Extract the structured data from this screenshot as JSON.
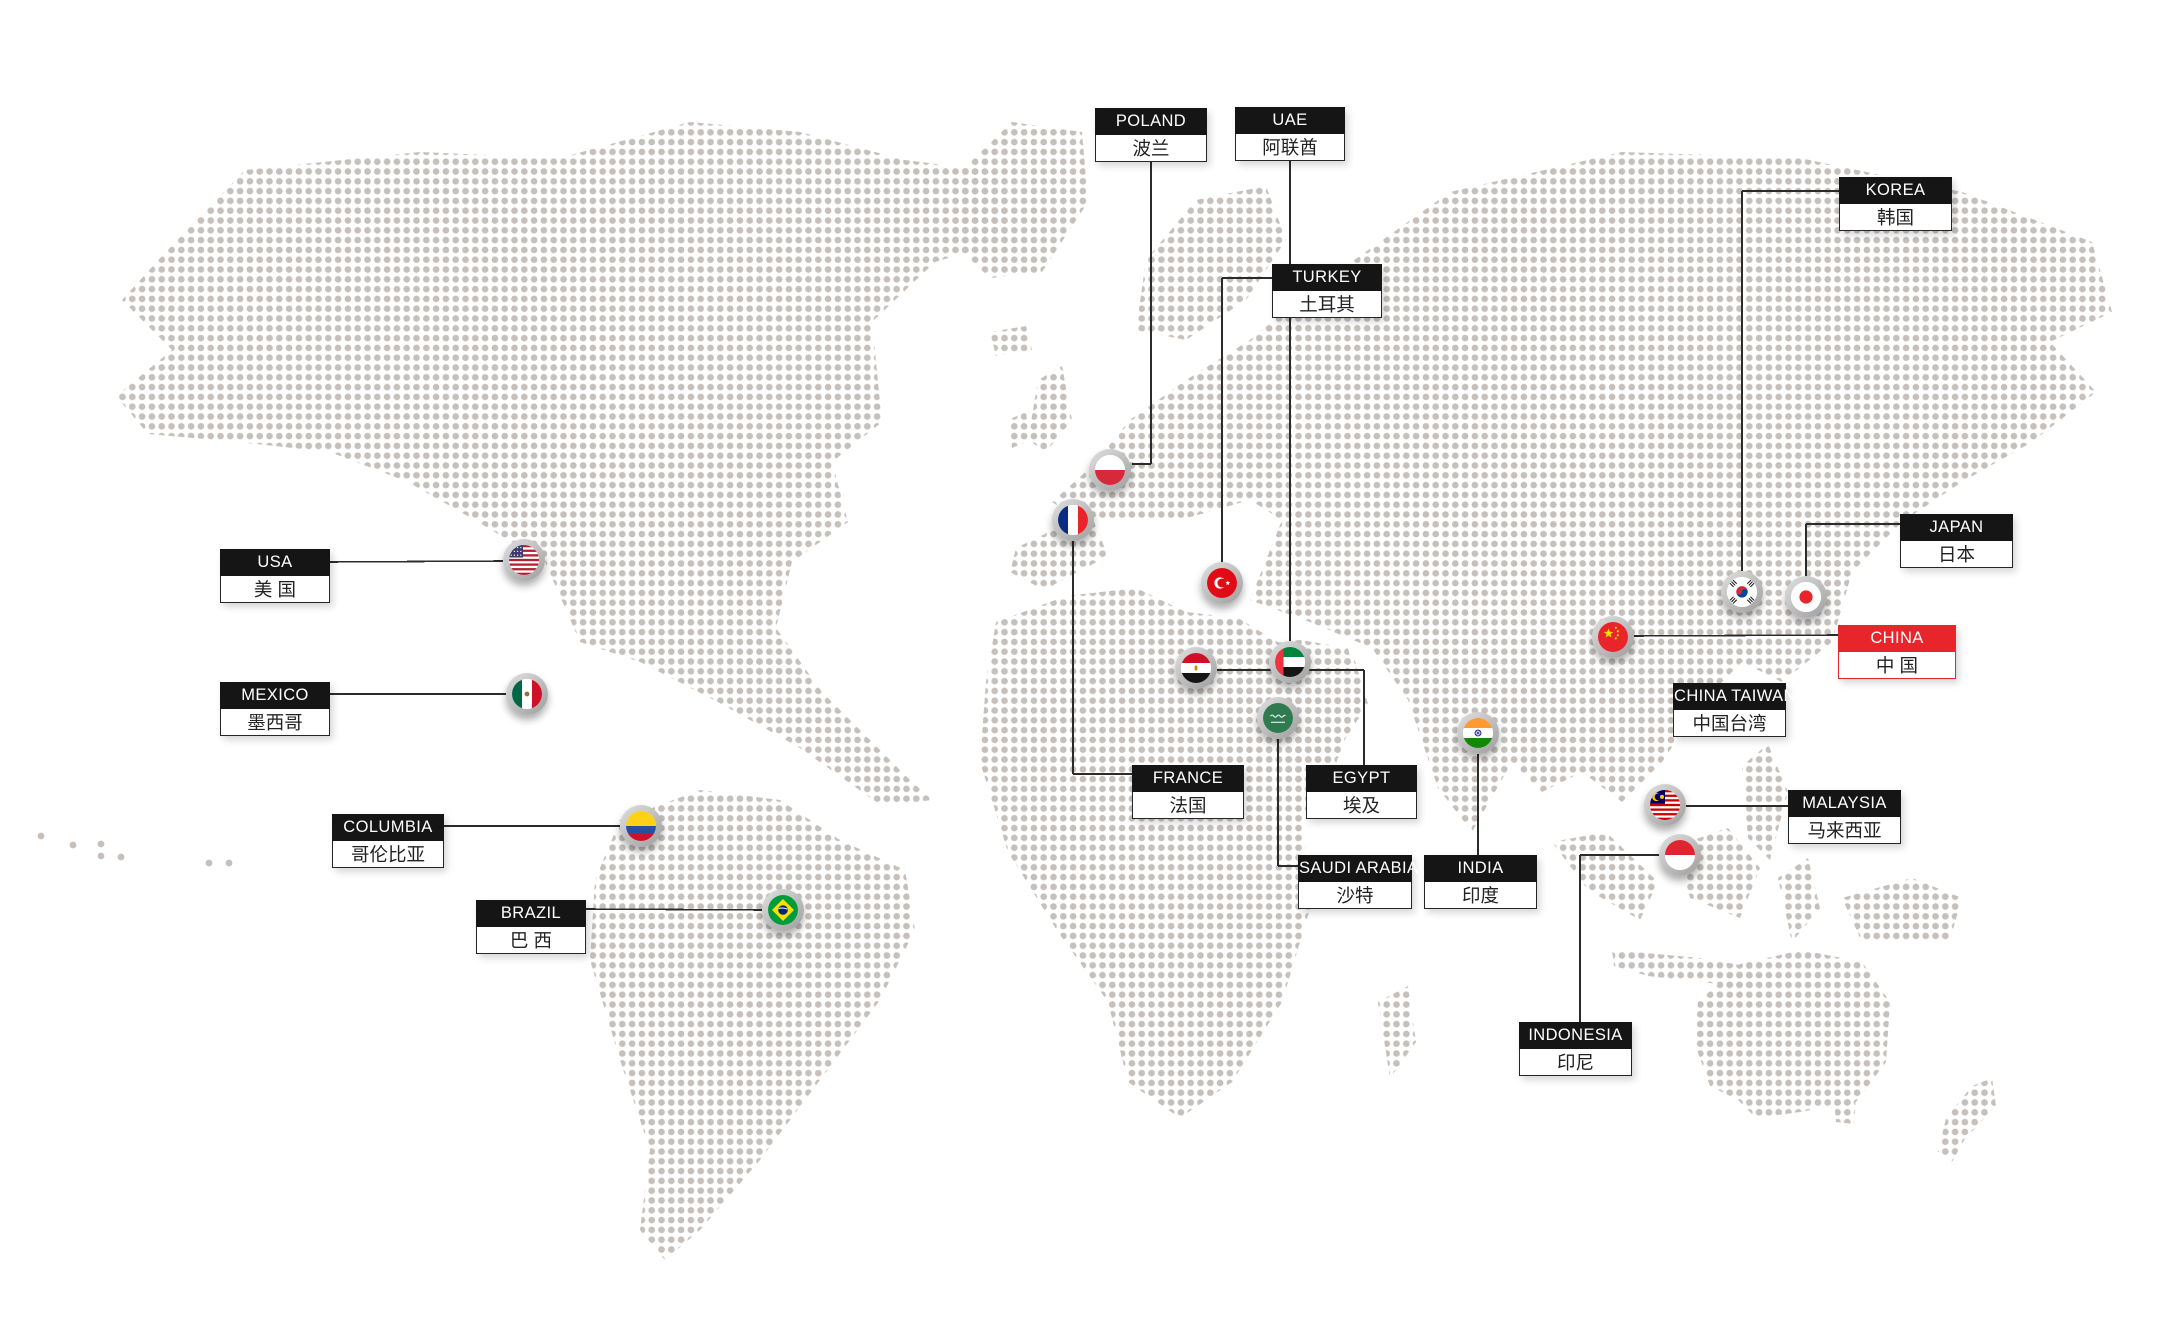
{
  "page": {
    "background": "#ffffff",
    "description": "global-presence-dotted-world-map"
  },
  "map": {
    "dot_color": "#c5c0bb",
    "connector_color": "#2b2b2b",
    "label_header_bg": "#151515",
    "label_header_text_color": "#ffffff",
    "label_body_bg": "#ffffff",
    "label_text_color": "#222222",
    "highlight_color": "#e8252a"
  },
  "countries": [
    {
      "id": "usa",
      "name_en": "USA",
      "name_zh": "美 国",
      "flag_icon": "usa-flag-icon",
      "highlighted": false
    },
    {
      "id": "mexico",
      "name_en": "MEXICO",
      "name_zh": "墨西哥",
      "flag_icon": "mexico-flag-icon",
      "highlighted": false
    },
    {
      "id": "columbia",
      "name_en": "COLUMBIA",
      "name_zh": "哥伦比亚",
      "flag_icon": "colombia-flag-icon",
      "highlighted": false
    },
    {
      "id": "brazil",
      "name_en": "BRAZIL",
      "name_zh": "巴 西",
      "flag_icon": "brazil-flag-icon",
      "highlighted": false
    },
    {
      "id": "poland",
      "name_en": "POLAND",
      "name_zh": "波兰",
      "flag_icon": "poland-flag-icon",
      "highlighted": false
    },
    {
      "id": "france",
      "name_en": "FRANCE",
      "name_zh": "法国",
      "flag_icon": "france-flag-icon",
      "highlighted": false
    },
    {
      "id": "turkey",
      "name_en": "TURKEY",
      "name_zh": "土耳其",
      "flag_icon": "turkey-flag-icon",
      "highlighted": false
    },
    {
      "id": "egypt",
      "name_en": "EGYPT",
      "name_zh": "埃及",
      "flag_icon": "egypt-flag-icon",
      "highlighted": false
    },
    {
      "id": "uae",
      "name_en": "UAE",
      "name_zh": "阿联酋",
      "flag_icon": "uae-flag-icon",
      "highlighted": false
    },
    {
      "id": "saudi-arabia",
      "name_en": "SAUDI ARABIA",
      "name_zh": "沙特",
      "flag_icon": "saudi-arabia-flag-icon",
      "highlighted": false
    },
    {
      "id": "india",
      "name_en": "INDIA",
      "name_zh": "印度",
      "flag_icon": "india-flag-icon",
      "highlighted": false
    },
    {
      "id": "china",
      "name_en": "CHINA",
      "name_zh": "中 国",
      "flag_icon": "china-flag-icon",
      "highlighted": true
    },
    {
      "id": "china-taiwan",
      "name_en": "CHINA TAIWAN",
      "name_zh": "中国台湾",
      "flag_icon": null,
      "highlighted": false
    },
    {
      "id": "korea",
      "name_en": "KOREA",
      "name_zh": "韩国",
      "flag_icon": "korea-flag-icon",
      "highlighted": false
    },
    {
      "id": "japan",
      "name_en": "JAPAN",
      "name_zh": "日本",
      "flag_icon": "japan-flag-icon",
      "highlighted": false
    },
    {
      "id": "malaysia",
      "name_en": "MALAYSIA",
      "name_zh": "马来西亚",
      "flag_icon": "malaysia-flag-icon",
      "highlighted": false
    },
    {
      "id": "indonesia",
      "name_en": "INDONESIA",
      "name_zh": "印尼",
      "flag_icon": "indonesia-flag-icon",
      "highlighted": false
    }
  ]
}
